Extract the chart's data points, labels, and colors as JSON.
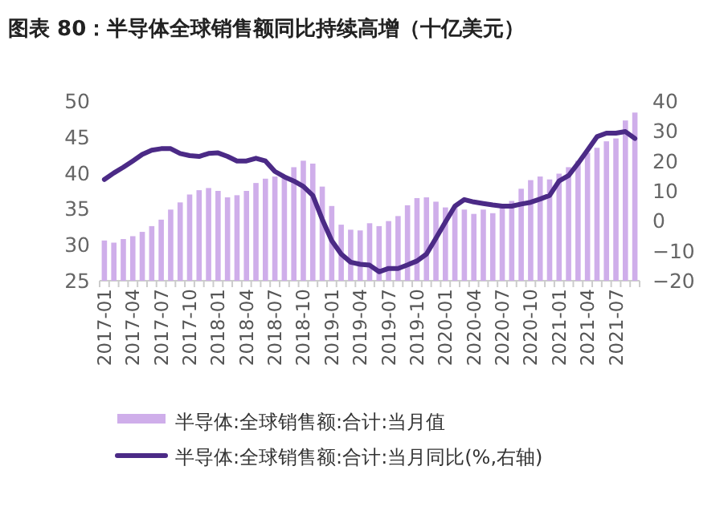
{
  "chart_data": {
    "type": "bar",
    "title": "图表 80：半导体全球销售额同比持续高增（十亿美元）",
    "categories": [
      "2017-01",
      null,
      null,
      "2017-04",
      null,
      null,
      "2017-07",
      null,
      null,
      "2017-10",
      null,
      null,
      "2018-01",
      null,
      null,
      "2018-04",
      null,
      null,
      "2018-07",
      null,
      null,
      "2018-10",
      null,
      null,
      "2019-01",
      null,
      null,
      "2019-04",
      null,
      null,
      "2019-07",
      null,
      null,
      "2019-10",
      null,
      null,
      "2020-01",
      null,
      null,
      "2020-04",
      null,
      null,
      "2020-07",
      null,
      null,
      "2020-10",
      null,
      null,
      "2021-01",
      null,
      null,
      "2021-04",
      null,
      null,
      "2021-07",
      null,
      null
    ],
    "series": [
      {
        "name": "半导体:全球销售额:合计:当月值",
        "color": "#cfaeea",
        "values": [
          30.6,
          30.3,
          30.8,
          31.2,
          31.8,
          32.6,
          33.5,
          34.9,
          35.9,
          37.0,
          37.6,
          37.9,
          37.5,
          36.6,
          36.9,
          37.5,
          38.6,
          39.2,
          39.5,
          39.5,
          40.8,
          41.7,
          41.3,
          38.1,
          35.4,
          32.8,
          32.1,
          32.0,
          33.0,
          32.6,
          33.3,
          34.0,
          35.5,
          36.5,
          36.6,
          36.0,
          35.2,
          35.2,
          34.9,
          34.3,
          34.9,
          34.4,
          35.5,
          36.1,
          37.8,
          39.0,
          39.5,
          39.1,
          39.9,
          40.8,
          41.7,
          42.8,
          43.5,
          44.4,
          44.8,
          47.3,
          48.4
        ]
      },
      {
        "name": "半导体:全球销售额:合计:当月同比(%,右轴)",
        "type": "line",
        "axis": "y2",
        "color": "#4b2a86",
        "values": [
          13.8,
          16.0,
          17.9,
          20.0,
          22.2,
          23.6,
          24.1,
          24.1,
          22.5,
          21.8,
          21.5,
          22.5,
          22.7,
          21.5,
          20.0,
          20.0,
          20.9,
          20.0,
          16.5,
          14.7,
          13.3,
          11.5,
          8.5,
          0.5,
          -6.6,
          -11.1,
          -13.8,
          -14.5,
          -14.8,
          -17.0,
          -15.9,
          -15.9,
          -14.7,
          -13.4,
          -11.1,
          -5.8,
          -0.4,
          4.9,
          7.1,
          6.3,
          5.8,
          5.3,
          4.9,
          4.9,
          5.6,
          6.2,
          7.3,
          8.5,
          13.3,
          15.1,
          19.2,
          23.6,
          28.1,
          29.3,
          29.3,
          29.8,
          27.5
        ]
      }
    ],
    "ylim": [
      25,
      50
    ],
    "yticks": [
      25,
      30,
      35,
      40,
      45,
      50
    ],
    "y2lim": [
      -20,
      40
    ],
    "y2ticks": [
      -20,
      -10,
      0,
      10,
      20,
      30,
      40
    ],
    "grid": false,
    "legend": "bottom"
  }
}
